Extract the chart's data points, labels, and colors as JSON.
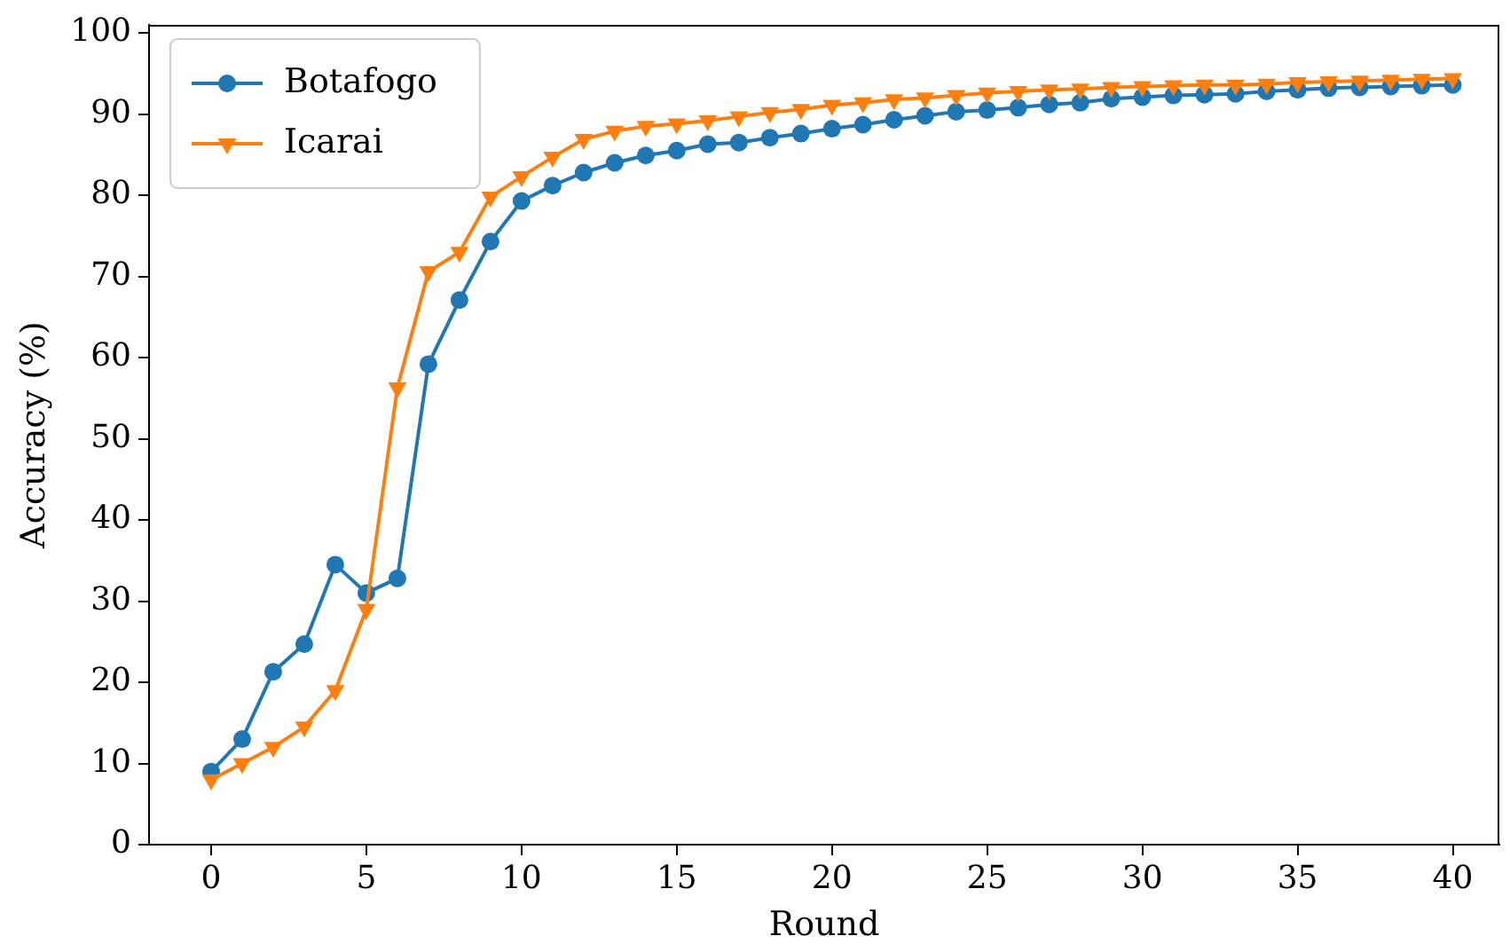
{
  "chart_data": {
    "type": "line",
    "xlabel": "Round",
    "ylabel": "Accuracy (%)",
    "x": [
      0,
      1,
      2,
      3,
      4,
      5,
      6,
      7,
      8,
      9,
      10,
      11,
      12,
      13,
      14,
      15,
      16,
      17,
      18,
      19,
      20,
      21,
      22,
      23,
      24,
      25,
      26,
      27,
      28,
      29,
      30,
      31,
      32,
      33,
      34,
      35,
      36,
      37,
      38,
      39,
      40
    ],
    "xlim": [
      -2,
      41.5
    ],
    "xticks": [
      0,
      5,
      10,
      15,
      20,
      25,
      30,
      35,
      40
    ],
    "ylim": [
      0,
      101
    ],
    "yticks": [
      0,
      10,
      20,
      30,
      40,
      50,
      60,
      70,
      80,
      90,
      100
    ],
    "grid": false,
    "legend": "top left",
    "line_style": "solid",
    "series": [
      {
        "name": "Botafogo",
        "color": "#1f77b4",
        "marker": "circle",
        "values": [
          9,
          13,
          21.3,
          24.7,
          34.5,
          31,
          32.8,
          59.2,
          67.1,
          74.3,
          79.3,
          81.2,
          82.8,
          84,
          84.9,
          85.5,
          86.3,
          86.5,
          87.1,
          87.6,
          88.2,
          88.7,
          89.3,
          89.8,
          90.3,
          90.5,
          90.8,
          91.2,
          91.4,
          91.9,
          92.1,
          92.3,
          92.4,
          92.5,
          92.8,
          93,
          93.2,
          93.3,
          93.4,
          93.5,
          93.6
        ]
      },
      {
        "name": "Icarai",
        "color": "#ff7f0e",
        "marker": "triangle",
        "values": [
          8,
          10,
          12,
          14.5,
          19,
          29,
          56.3,
          70.6,
          73,
          79.8,
          82.3,
          84.7,
          86.9,
          87.9,
          88.5,
          88.8,
          89.2,
          89.7,
          90.2,
          90.6,
          91.1,
          91.4,
          91.8,
          92,
          92.3,
          92.6,
          92.8,
          93,
          93.1,
          93.3,
          93.4,
          93.5,
          93.6,
          93.6,
          93.7,
          93.9,
          94,
          94.1,
          94.2,
          94.3,
          94.4
        ]
      }
    ]
  }
}
